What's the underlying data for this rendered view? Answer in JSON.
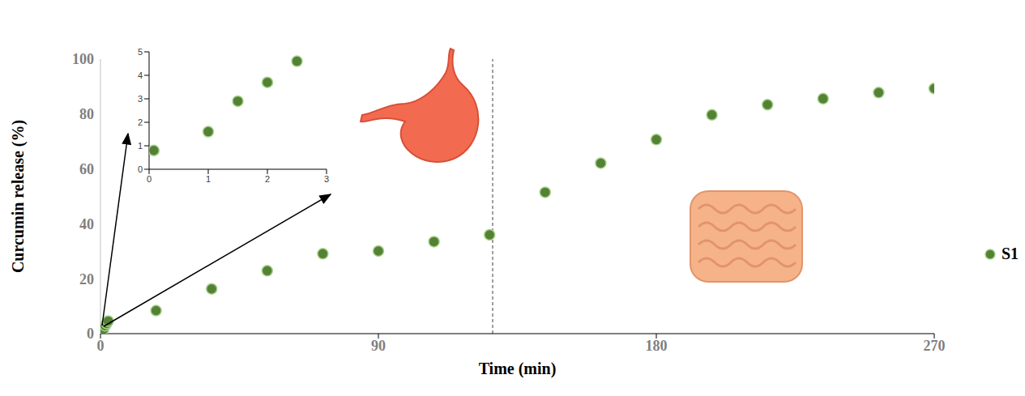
{
  "chart_data": [
    {
      "type": "scatter",
      "x_label": "Time (min)",
      "y_label": "Curcumin release (%)",
      "xlim": [
        0,
        270
      ],
      "xticks": [
        0,
        90,
        180,
        270
      ],
      "ylim": [
        0,
        100
      ],
      "yticks": [
        0,
        20,
        40,
        60,
        80,
        100
      ],
      "legend": "right",
      "marker": "circle",
      "vline_x": 127,
      "series": [
        {
          "name": "S1",
          "color": "#548235",
          "x": [
            0.08,
            1,
            1.5,
            2,
            2.5,
            18,
            36,
            54,
            72,
            90,
            108,
            126,
            144,
            162,
            180,
            198,
            216,
            234,
            252,
            270
          ],
          "values": [
            0.8,
            1.6,
            2.9,
            3.7,
            4.6,
            8.4,
            16.3,
            22.9,
            29.1,
            30.1,
            33.5,
            36.0,
            51.5,
            62.1,
            70.7,
            79.7,
            83.4,
            85.6,
            87.8,
            89.3
          ]
        }
      ]
    },
    {
      "type": "scatter",
      "xlim": [
        0,
        3
      ],
      "xticks": [
        0,
        1,
        2,
        3
      ],
      "ylim": [
        0,
        5
      ],
      "yticks": [
        0,
        1,
        2,
        3,
        4,
        5
      ],
      "marker": "circle",
      "series": [
        {
          "color": "#548235",
          "x": [
            0.08,
            1,
            1.5,
            2,
            2.5
          ],
          "values": [
            0.8,
            1.6,
            2.9,
            3.7,
            4.6
          ]
        }
      ]
    }
  ]
}
